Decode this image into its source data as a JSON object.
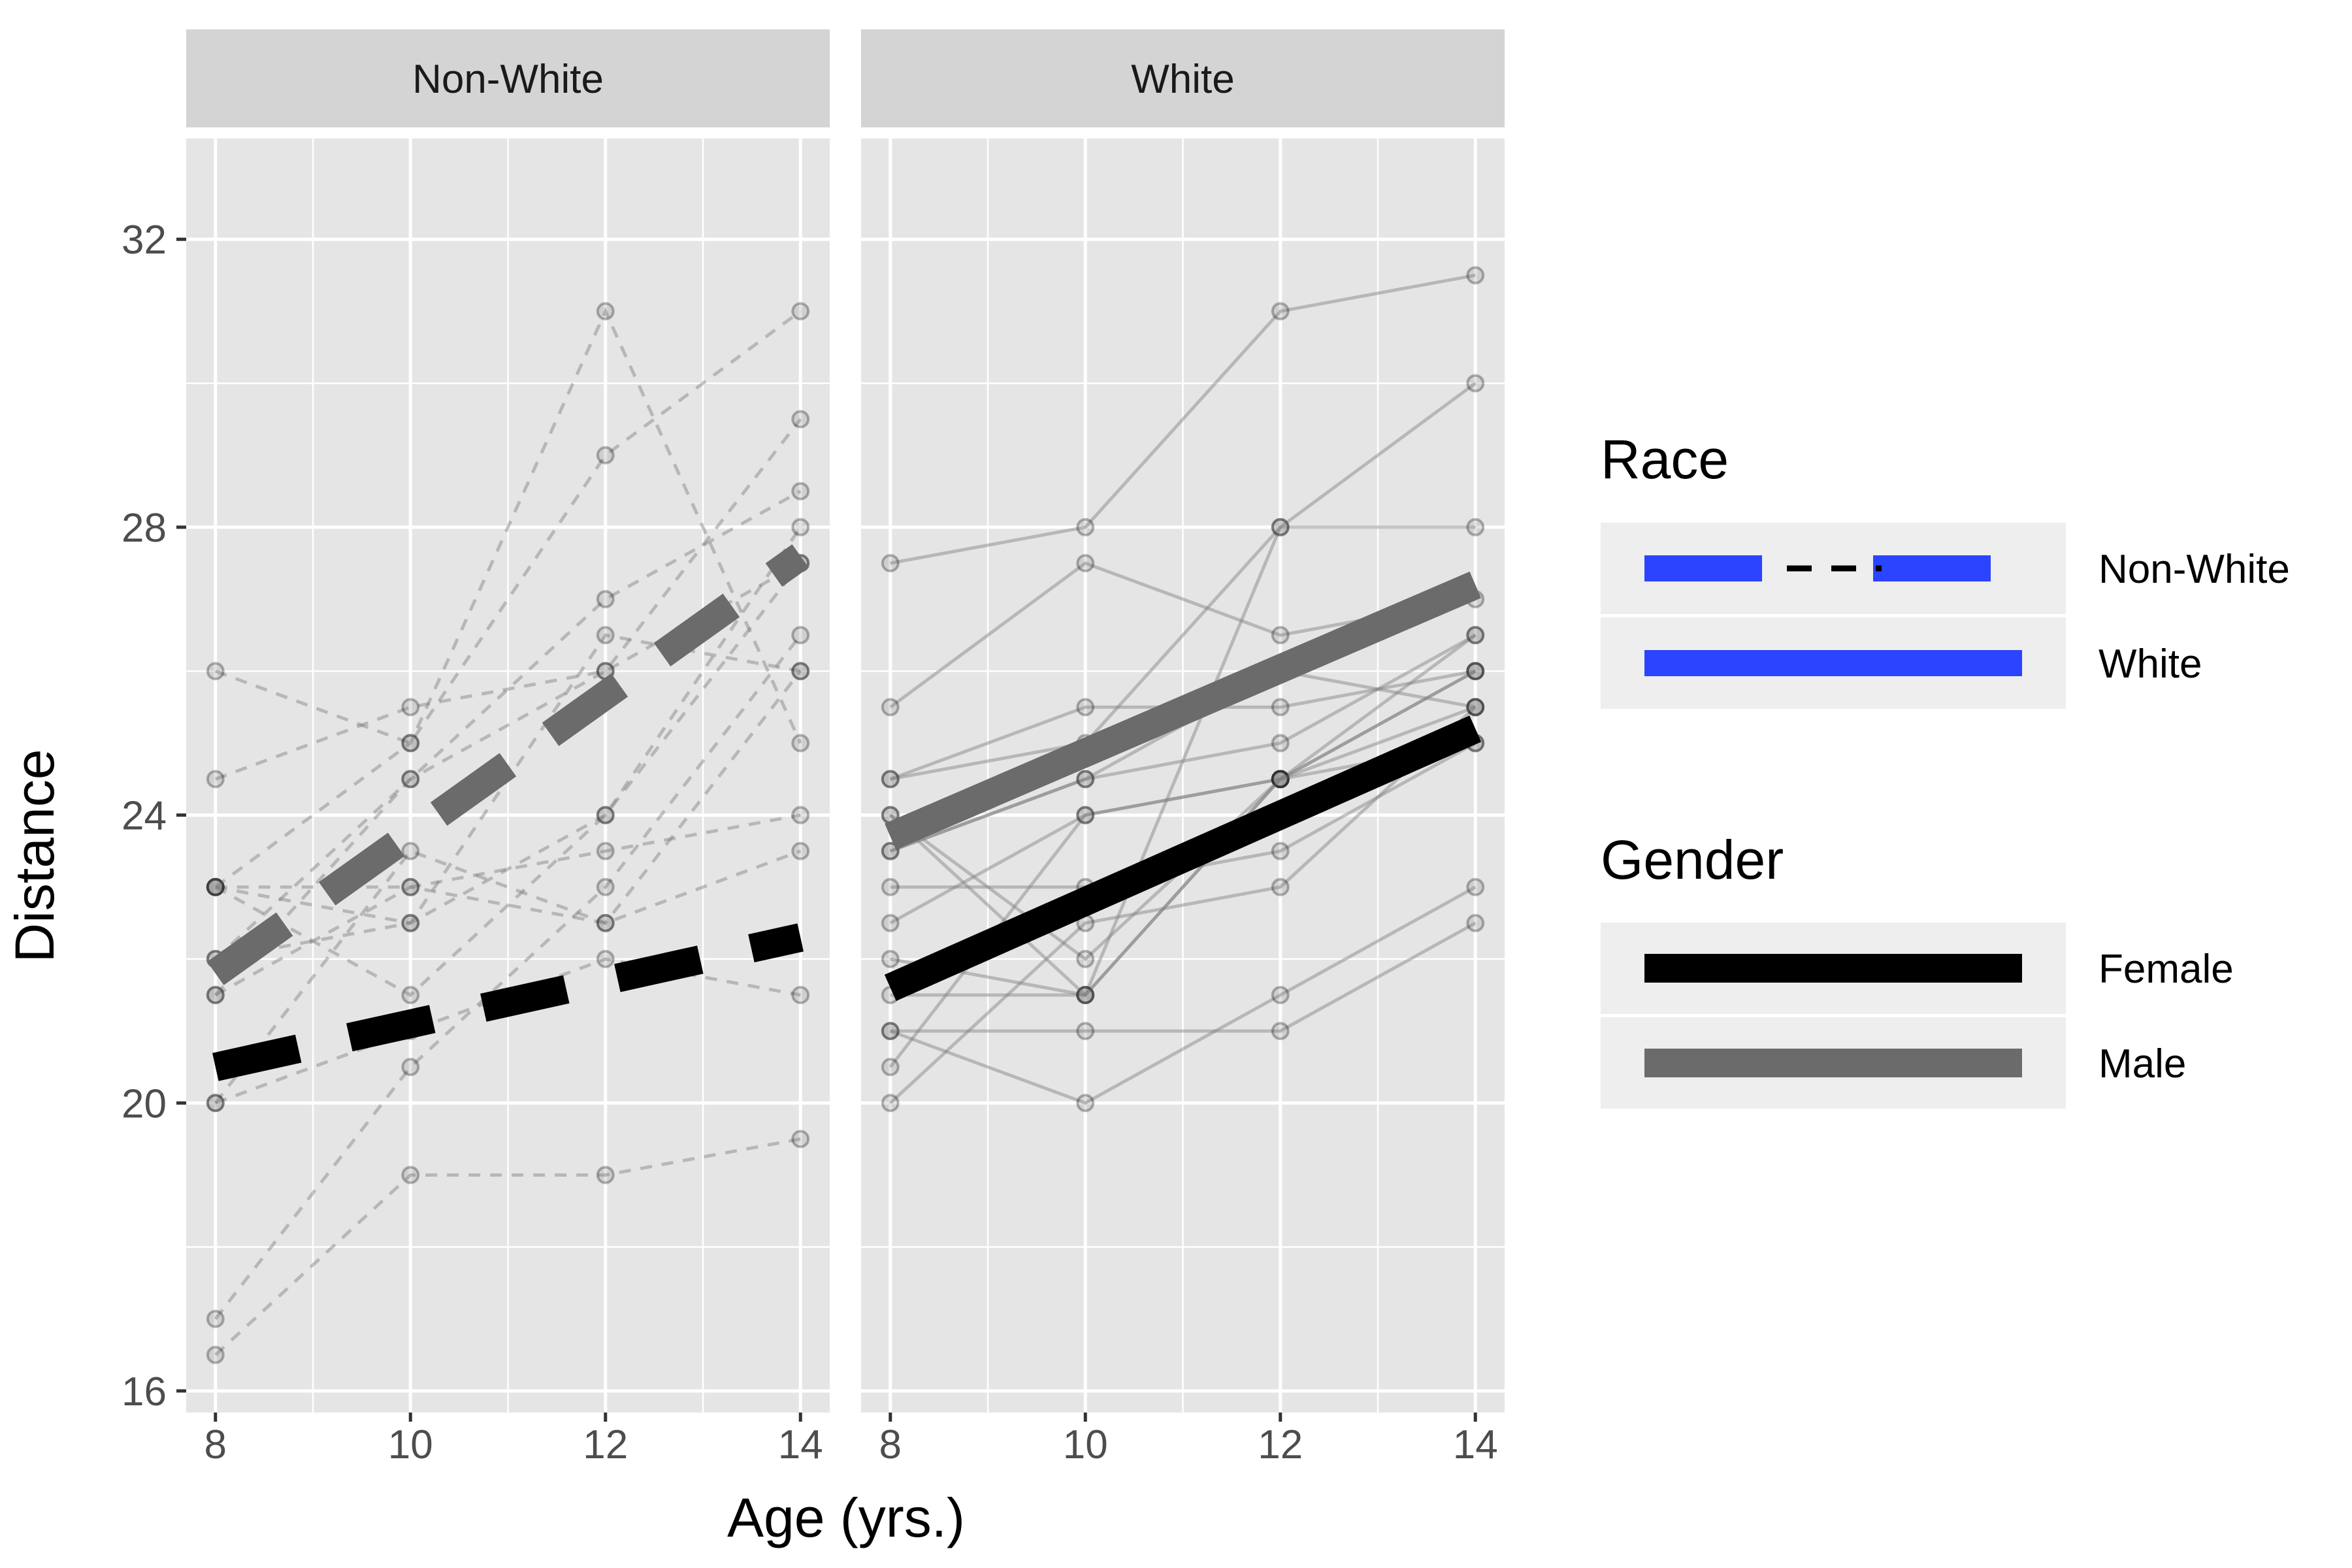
{
  "chart_data": {
    "type": "line",
    "xlabel": "Age (yrs.)",
    "ylabel": "Distance",
    "xlim": [
      7.7,
      14.3
    ],
    "ylim": [
      15.7,
      33.4
    ],
    "x_ticks": [
      8,
      10,
      12,
      14
    ],
    "y_ticks": [
      16,
      20,
      24,
      28,
      32
    ],
    "grid": true,
    "legend_position": "right",
    "panels": [
      {
        "label": "Non-White",
        "individual_lines": [
          [
            26,
            25,
            29,
            31
          ],
          [
            24.5,
            25.5,
            26,
            27.5
          ],
          [
            23,
            22.5,
            24,
            27.5
          ],
          [
            23,
            23,
            23.5,
            24
          ],
          [
            23,
            21.5,
            24,
            28
          ],
          [
            22,
            24.5,
            26,
            29.5
          ],
          [
            22,
            22.5,
            26.5,
            26
          ],
          [
            21.5,
            23,
            22.5,
            23.5
          ],
          [
            21.5,
            24.5,
            27,
            28.5
          ],
          [
            20,
            23.5,
            22.5,
            26
          ],
          [
            20,
            21,
            22,
            21.5
          ],
          [
            17,
            20.5,
            23,
            26.5
          ],
          [
            16.5,
            19,
            19,
            19.5
          ],
          [
            23,
            25,
            31,
            25
          ]
        ],
        "mean_lines": [
          {
            "gender": "Male",
            "x": [
              8,
              14
            ],
            "values": [
              21.8,
              27.6
            ]
          },
          {
            "gender": "Female",
            "x": [
              8,
              14
            ],
            "values": [
              20.5,
              22.3
            ]
          }
        ]
      },
      {
        "label": "White",
        "individual_lines": [
          [
            27.5,
            28,
            31,
            31.5
          ],
          [
            25.5,
            27.5,
            26.5,
            27
          ],
          [
            24.5,
            25.5,
            25.5,
            26
          ],
          [
            24,
            22,
            24.5,
            26.5
          ],
          [
            24.5,
            25,
            28,
            28
          ],
          [
            23.5,
            24.5,
            25,
            26.5
          ],
          [
            23,
            23,
            23.5,
            25
          ],
          [
            22.5,
            24,
            24.5,
            26
          ],
          [
            21.5,
            21.5,
            28,
            30
          ],
          [
            21,
            20,
            21.5,
            23
          ],
          [
            21,
            21,
            21,
            22.5
          ],
          [
            20.5,
            24,
            24.5,
            26
          ],
          [
            20,
            22.5,
            23,
            25.5
          ],
          [
            23.5,
            24.5,
            26,
            25.5
          ],
          [
            22,
            21.5,
            24.5,
            25
          ],
          [
            24,
            21.5,
            24.5,
            25.5
          ]
        ],
        "mean_lines": [
          {
            "gender": "Male",
            "x": [
              8,
              14
            ],
            "values": [
              23.7,
              27.2
            ]
          },
          {
            "gender": "Female",
            "x": [
              8,
              14
            ],
            "values": [
              21.6,
              25.2
            ]
          }
        ]
      }
    ],
    "legend": {
      "race_title": "Race",
      "race_items": [
        {
          "label": "Non-White",
          "linetype": "dashed",
          "color": "#2a44ff"
        },
        {
          "label": "White",
          "linetype": "solid",
          "color": "#2a44ff"
        }
      ],
      "gender_title": "Gender",
      "gender_items": [
        {
          "label": "Female",
          "color": "#000000"
        },
        {
          "label": "Male",
          "color": "#6b6b6b"
        }
      ]
    },
    "colors": {
      "panel_bg": "#e5e5e5",
      "strip_bg": "#d4d4d4",
      "grid": "#ffffff",
      "individual": "#7f7f7f",
      "female": "#000000",
      "male": "#6b6b6b",
      "legend_key_bg": "#eeeeee",
      "race_key": "#2a44ff"
    }
  }
}
